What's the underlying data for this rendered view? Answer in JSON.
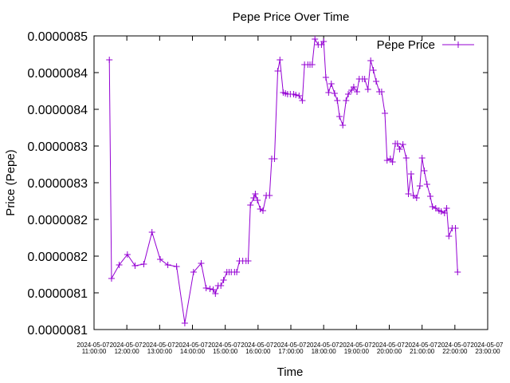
{
  "chart_data": {
    "type": "line",
    "title": "Pepe Price Over Time",
    "xlabel": "Time",
    "ylabel": "Price (Pepe)",
    "x": [
      "2024-05-07 11:28:00",
      "2024-05-07 11:32:00",
      "2024-05-07 11:46:00",
      "2024-05-07 12:01:00",
      "2024-05-07 12:15:00",
      "2024-05-07 12:31:00",
      "2024-05-07 12:46:00",
      "2024-05-07 13:01:00",
      "2024-05-07 13:15:00",
      "2024-05-07 13:31:00",
      "2024-05-07 13:46:00",
      "2024-05-07 14:02:00",
      "2024-05-07 14:16:00",
      "2024-05-07 14:25:00",
      "2024-05-07 14:32:00",
      "2024-05-07 14:38:00",
      "2024-05-07 14:42:00",
      "2024-05-07 14:47:00",
      "2024-05-07 14:52:00",
      "2024-05-07 14:57:00",
      "2024-05-07 15:03:00",
      "2024-05-07 15:07:00",
      "2024-05-07 15:11:00",
      "2024-05-07 15:17:00",
      "2024-05-07 15:21:00",
      "2024-05-07 15:26:00",
      "2024-05-07 15:32:00",
      "2024-05-07 15:38:00",
      "2024-05-07 15:42:00",
      "2024-05-07 15:46:00",
      "2024-05-07 15:52:00",
      "2024-05-07 15:55:00",
      "2024-05-07 15:59:00",
      "2024-05-07 16:04:00",
      "2024-05-07 16:09:00",
      "2024-05-07 16:15:00",
      "2024-05-07 16:21:00",
      "2024-05-07 16:25:00",
      "2024-05-07 16:30:00",
      "2024-05-07 16:36:00",
      "2024-05-07 16:40:00",
      "2024-05-07 16:46:00",
      "2024-05-07 16:50:00",
      "2024-05-07 16:54:00",
      "2024-05-07 16:59:00",
      "2024-05-07 17:05:00",
      "2024-05-07 17:09:00",
      "2024-05-07 17:15:00",
      "2024-05-07 17:21:00",
      "2024-05-07 17:25:00",
      "2024-05-07 17:31:00",
      "2024-05-07 17:35:00",
      "2024-05-07 17:39:00",
      "2024-05-07 17:44:00",
      "2024-05-07 17:50:00",
      "2024-05-07 17:56:00",
      "2024-05-07 18:00:00",
      "2024-05-07 18:04:00",
      "2024-05-07 18:09:00",
      "2024-05-07 18:14:00",
      "2024-05-07 18:20:00",
      "2024-05-07 18:25:00",
      "2024-05-07 18:29:00",
      "2024-05-07 18:35:00",
      "2024-05-07 18:41:00",
      "2024-05-07 18:45:00",
      "2024-05-07 18:51:00",
      "2024-05-07 18:55:00",
      "2024-05-07 19:01:00",
      "2024-05-07 19:05:00",
      "2024-05-07 19:11:00",
      "2024-05-07 19:15:00",
      "2024-05-07 19:21:00",
      "2024-05-07 19:26:00",
      "2024-05-07 19:31:00",
      "2024-05-07 19:36:00",
      "2024-05-07 19:42:00",
      "2024-05-07 19:46:00",
      "2024-05-07 19:52:00",
      "2024-05-07 19:56:00",
      "2024-05-07 20:02:00",
      "2024-05-07 20:06:00",
      "2024-05-07 20:11:00",
      "2024-05-07 20:15:00",
      "2024-05-07 20:19:00",
      "2024-05-07 20:25:00",
      "2024-05-07 20:31:00",
      "2024-05-07 20:35:00",
      "2024-05-07 20:40:00",
      "2024-05-07 20:44:00",
      "2024-05-07 20:50:00",
      "2024-05-07 20:56:00",
      "2024-05-07 21:00:00",
      "2024-05-07 21:04:00",
      "2024-05-07 21:09:00",
      "2024-05-07 21:15:00",
      "2024-05-07 21:19:00",
      "2024-05-07 21:25:00",
      "2024-05-07 21:31:00",
      "2024-05-07 21:35:00",
      "2024-05-07 21:41:00",
      "2024-05-07 21:45:00",
      "2024-05-07 21:49:00",
      "2024-05-07 21:55:00",
      "2024-05-07 22:01:00",
      "2024-05-07 22:05:00"
    ],
    "series": [
      {
        "name": "Pepe Price",
        "color": "#9400d3",
        "values": [
          8.4674e-06,
          8.1696e-06,
          8.188e-06,
          8.2022e-06,
          8.1869e-06,
          8.1891e-06,
          8.2326e-06,
          8.1956e-06,
          8.188e-06,
          8.1859e-06,
          8.1087e-06,
          8.1782e-06,
          8.1902e-06,
          8.1565e-06,
          8.1554e-06,
          8.1543e-06,
          8.1489e-06,
          8.1598e-06,
          8.1598e-06,
          8.1674e-06,
          8.1782e-06,
          8.1782e-06,
          8.1782e-06,
          8.1782e-06,
          8.1782e-06,
          8.1935e-06,
          8.1935e-06,
          8.1935e-06,
          8.1935e-06,
          8.2696e-06,
          8.2793e-06,
          8.2848e-06,
          8.2761e-06,
          8.2641e-06,
          8.2619e-06,
          8.2826e-06,
          8.2826e-06,
          8.3326e-06,
          8.3326e-06,
          8.4522e-06,
          8.4674e-06,
          8.4228e-06,
          8.4217e-06,
          8.4206e-06,
          8.4206e-06,
          8.4206e-06,
          8.4196e-06,
          8.4185e-06,
          8.412e-06,
          8.4609e-06,
          8.4609e-06,
          8.4609e-06,
          8.4609e-06,
          8.4957e-06,
          8.488e-06,
          8.488e-06,
          8.4924e-06,
          8.4435e-06,
          8.4228e-06,
          8.4348e-06,
          8.4217e-06,
          8.412e-06,
          8.3902e-06,
          8.3783e-06,
          8.412e-06,
          8.4206e-06,
          8.4261e-06,
          8.4304e-06,
          8.4239e-06,
          8.4413e-06,
          8.4413e-06,
          8.4413e-06,
          8.4272e-06,
          8.4663e-06,
          8.4533e-06,
          8.438e-06,
          8.4239e-06,
          8.4239e-06,
          8.3946e-06,
          8.3304e-06,
          8.3326e-06,
          8.3283e-06,
          8.3533e-06,
          8.3533e-06,
          8.3456e-06,
          8.3522e-06,
          8.3337e-06,
          8.2848e-06,
          8.3119e-06,
          8.2826e-06,
          8.2793e-06,
          8.2956e-06,
          8.3337e-06,
          8.3163e-06,
          8.2978e-06,
          8.2815e-06,
          8.2674e-06,
          8.2652e-06,
          8.2619e-06,
          8.2609e-06,
          8.2587e-06,
          8.2652e-06,
          8.2272e-06,
          8.238e-06,
          8.238e-06,
          8.1782e-06
        ]
      }
    ],
    "xlim": [
      "2024-05-07 11:00:00",
      "2024-05-07 23:00:00"
    ],
    "xticks": [
      "2024-05-07 11:00:00",
      "2024-05-07 12:00:00",
      "2024-05-07 13:00:00",
      "2024-05-07 14:00:00",
      "2024-05-07 15:00:00",
      "2024-05-07 16:00:00",
      "2024-05-07 17:00:00",
      "2024-05-07 18:00:00",
      "2024-05-07 19:00:00",
      "2024-05-07 20:00:00",
      "2024-05-07 21:00:00",
      "2024-05-07 22:00:00",
      "2024-05-07 23:00:00"
    ],
    "ylim": [
      8.1e-06,
      8.5e-06
    ],
    "yticks": [
      {
        "value": 8.1e-06,
        "label": "0.0000081"
      },
      {
        "value": 8.15e-06,
        "label": "0.0000081"
      },
      {
        "value": 8.2e-06,
        "label": "0.0000082"
      },
      {
        "value": 8.25e-06,
        "label": "0.0000082"
      },
      {
        "value": 8.3e-06,
        "label": "0.0000083"
      },
      {
        "value": 8.35e-06,
        "label": "0.0000083"
      },
      {
        "value": 8.4e-06,
        "label": "0.0000084"
      },
      {
        "value": 8.45e-06,
        "label": "0.0000084"
      },
      {
        "value": 8.5e-06,
        "label": "0.0000085"
      }
    ],
    "grid": false,
    "legend": "top right"
  }
}
